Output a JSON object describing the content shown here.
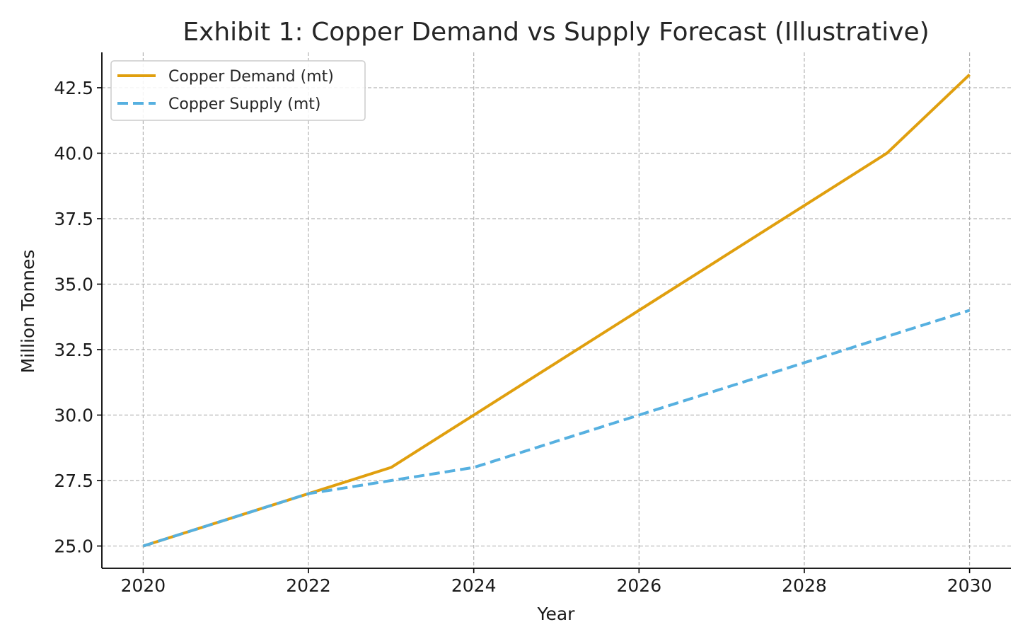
{
  "chart_data": {
    "type": "line",
    "title": "Exhibit 1: Copper Demand vs Supply Forecast (Illustrative)",
    "xlabel": "Year",
    "ylabel": "Million Tonnes",
    "x": [
      2020,
      2021,
      2022,
      2023,
      2024,
      2025,
      2026,
      2027,
      2028,
      2029,
      2030
    ],
    "xlim": [
      2019.5,
      2030.5
    ],
    "ylim": [
      24.15,
      43.85
    ],
    "xticks": [
      2020,
      2022,
      2024,
      2026,
      2028,
      2030
    ],
    "xtick_labels": [
      "2020",
      "2022",
      "2024",
      "2026",
      "2028",
      "2030"
    ],
    "yticks": [
      25.0,
      27.5,
      30.0,
      32.5,
      35.0,
      37.5,
      40.0,
      42.5
    ],
    "ytick_labels": [
      "25.0",
      "27.5",
      "30.0",
      "32.5",
      "35.0",
      "37.5",
      "40.0",
      "42.5"
    ],
    "grid": true,
    "legend_position": "top-left",
    "series": [
      {
        "name": "Copper Demand (mt)",
        "values": [
          25,
          26,
          27,
          28,
          30,
          32,
          34,
          36,
          38,
          40,
          43
        ],
        "color": "#E09F0E",
        "style": "solid"
      },
      {
        "name": "Copper Supply (mt)",
        "values": [
          25,
          26,
          27,
          27.5,
          28,
          29,
          30,
          31,
          32,
          33,
          34
        ],
        "color": "#56B0E0",
        "style": "dashed"
      }
    ]
  }
}
